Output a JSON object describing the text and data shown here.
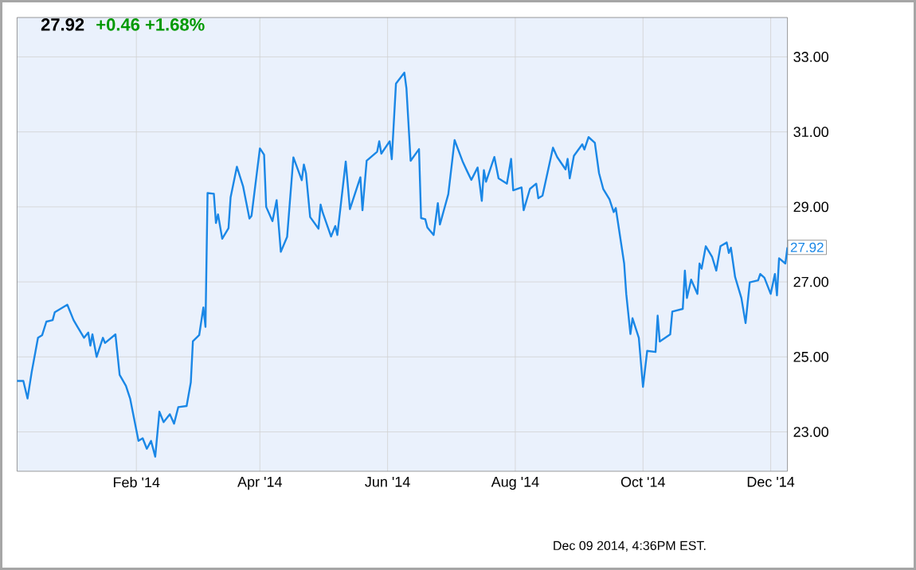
{
  "chart_data": {
    "type": "line",
    "title": "27.92",
    "subtitle": "+0.46 +1.68%",
    "x": [
      "2013-12-06",
      "2013-12-09",
      "2013-12-11",
      "2013-12-13",
      "2013-12-16",
      "2013-12-18",
      "2013-12-20",
      "2013-12-23",
      "2013-12-24",
      "2013-12-30",
      "2014-01-02",
      "2014-01-04",
      "2014-01-07",
      "2014-01-09",
      "2014-01-10",
      "2014-01-11",
      "2014-01-13",
      "2014-01-16",
      "2014-01-17",
      "2014-01-22",
      "2014-01-24",
      "2014-01-27",
      "2014-01-29",
      "2014-02-02",
      "2014-02-04",
      "2014-02-06",
      "2014-02-08",
      "2014-02-10",
      "2014-02-12",
      "2014-02-14",
      "2014-02-17",
      "2014-02-19",
      "2014-02-21",
      "2014-02-25",
      "2014-02-27",
      "2014-02-28",
      "2014-03-03",
      "2014-03-05",
      "2014-03-06",
      "2014-03-07",
      "2014-03-10",
      "2014-03-11",
      "2014-03-12",
      "2014-03-14",
      "2014-03-17",
      "2014-03-18",
      "2014-03-21",
      "2014-03-24",
      "2014-03-27",
      "2014-03-28",
      "2014-04-01",
      "2014-04-03",
      "2014-04-04",
      "2014-04-07",
      "2014-04-09",
      "2014-04-11",
      "2014-04-14",
      "2014-04-17",
      "2014-04-21",
      "2014-04-22",
      "2014-04-23",
      "2014-04-25",
      "2014-04-29",
      "2014-04-30",
      "2014-05-01",
      "2014-05-05",
      "2014-05-07",
      "2014-05-08",
      "2014-05-12",
      "2014-05-14",
      "2014-05-19",
      "2014-05-20",
      "2014-05-22",
      "2014-05-27",
      "2014-05-28",
      "2014-05-29",
      "2014-06-02",
      "2014-06-03",
      "2014-06-05",
      "2014-06-09",
      "2014-06-10",
      "2014-06-12",
      "2014-06-16",
      "2014-06-17",
      "2014-06-19",
      "2014-06-20",
      "2014-06-23",
      "2014-06-25",
      "2014-06-26",
      "2014-06-30",
      "2014-07-03",
      "2014-07-07",
      "2014-07-09",
      "2014-07-11",
      "2014-07-14",
      "2014-07-16",
      "2014-07-17",
      "2014-07-18",
      "2014-07-22",
      "2014-07-24",
      "2014-07-28",
      "2014-07-30",
      "2014-07-31",
      "2014-08-04",
      "2014-08-05",
      "2014-08-08",
      "2014-08-11",
      "2014-08-12",
      "2014-08-14",
      "2014-08-19",
      "2014-08-21",
      "2014-08-25",
      "2014-08-26",
      "2014-08-27",
      "2014-08-29",
      "2014-09-02",
      "2014-09-03",
      "2014-09-05",
      "2014-09-08",
      "2014-09-10",
      "2014-09-12",
      "2014-09-15",
      "2014-09-17",
      "2014-09-18",
      "2014-09-22",
      "2014-09-23",
      "2014-09-25",
      "2014-09-26",
      "2014-09-29",
      "2014-10-01",
      "2014-10-03",
      "2014-10-07",
      "2014-10-08",
      "2014-10-09",
      "2014-10-14",
      "2014-10-15",
      "2014-10-20",
      "2014-10-21",
      "2014-10-22",
      "2014-10-24",
      "2014-10-27",
      "2014-10-28",
      "2014-10-29",
      "2014-10-31",
      "2014-11-03",
      "2014-11-05",
      "2014-11-07",
      "2014-11-10",
      "2014-11-11",
      "2014-11-12",
      "2014-11-14",
      "2014-11-17",
      "2014-11-19",
      "2014-11-21",
      "2014-11-25",
      "2014-11-26",
      "2014-11-28",
      "2014-12-01",
      "2014-12-03",
      "2014-12-04",
      "2014-12-05",
      "2014-12-08",
      "2014-12-09"
    ],
    "series": [
      {
        "color": "#1a87e6",
        "values": [
          24.36,
          24.36,
          23.89,
          24.6,
          25.51,
          25.58,
          25.94,
          25.98,
          26.19,
          26.39,
          25.98,
          25.79,
          25.51,
          25.65,
          25.3,
          25.6,
          25.0,
          25.51,
          25.37,
          25.6,
          24.52,
          24.23,
          23.89,
          22.76,
          22.83,
          22.55,
          22.76,
          22.34,
          23.54,
          23.26,
          23.47,
          23.22,
          23.66,
          23.69,
          24.32,
          25.42,
          25.58,
          26.32,
          25.8,
          29.37,
          29.35,
          28.57,
          28.8,
          28.15,
          28.43,
          29.25,
          30.07,
          29.54,
          28.69,
          28.76,
          30.56,
          30.39,
          29.0,
          28.62,
          29.18,
          27.8,
          28.2,
          30.32,
          29.71,
          30.13,
          29.9,
          28.73,
          28.42,
          29.06,
          28.85,
          28.21,
          28.49,
          28.25,
          30.21,
          28.94,
          29.79,
          28.91,
          30.23,
          30.47,
          30.75,
          30.42,
          30.75,
          30.27,
          32.29,
          32.58,
          32.16,
          30.23,
          30.54,
          28.7,
          28.67,
          28.45,
          28.25,
          29.1,
          28.53,
          29.34,
          30.78,
          30.19,
          29.95,
          29.72,
          30.05,
          29.16,
          29.98,
          29.67,
          30.33,
          29.76,
          29.62,
          30.28,
          29.44,
          29.52,
          28.91,
          29.48,
          29.62,
          29.23,
          29.3,
          30.58,
          30.33,
          30.0,
          30.28,
          29.76,
          30.36,
          30.67,
          30.53,
          30.86,
          30.71,
          29.9,
          29.48,
          29.2,
          28.86,
          28.97,
          27.49,
          26.68,
          25.61,
          26.03,
          25.51,
          24.2,
          25.16,
          25.13,
          26.1,
          25.41,
          25.6,
          26.21,
          26.28,
          27.3,
          26.57,
          27.06,
          26.68,
          27.49,
          27.35,
          27.95,
          27.67,
          27.3,
          27.95,
          28.05,
          27.77,
          27.91,
          27.13,
          26.57,
          25.9,
          26.99,
          27.04,
          27.21,
          27.11,
          26.68,
          27.21,
          26.64,
          27.63,
          27.49,
          27.92
        ]
      }
    ],
    "xlim": [
      "2013-12-06",
      "2014-12-09"
    ],
    "xticks": [
      {
        "value": "2014-02-01",
        "label": "Feb '14"
      },
      {
        "value": "2014-04-01",
        "label": "Apr '14"
      },
      {
        "value": "2014-06-01",
        "label": "Jun '14"
      },
      {
        "value": "2014-08-01",
        "label": "Aug '14"
      },
      {
        "value": "2014-10-01",
        "label": "Oct '14"
      },
      {
        "value": "2014-12-01",
        "label": "Dec '14"
      }
    ],
    "ylim": [
      21.95,
      34.05
    ],
    "yticks": [
      {
        "value": 23,
        "label": "23.00"
      },
      {
        "value": 25,
        "label": "25.00"
      },
      {
        "value": 27,
        "label": "27.00"
      },
      {
        "value": 29,
        "label": "29.00"
      },
      {
        "value": 31,
        "label": "31.00"
      },
      {
        "value": 33,
        "label": "33.00"
      }
    ],
    "grid": true,
    "marker": "none",
    "line_style": "solid",
    "annotations": [
      {
        "text": "27.92",
        "x": "2014-12-09",
        "y": 27.92
      },
      "Dec 09 2014, 4:36PM EST."
    ]
  }
}
